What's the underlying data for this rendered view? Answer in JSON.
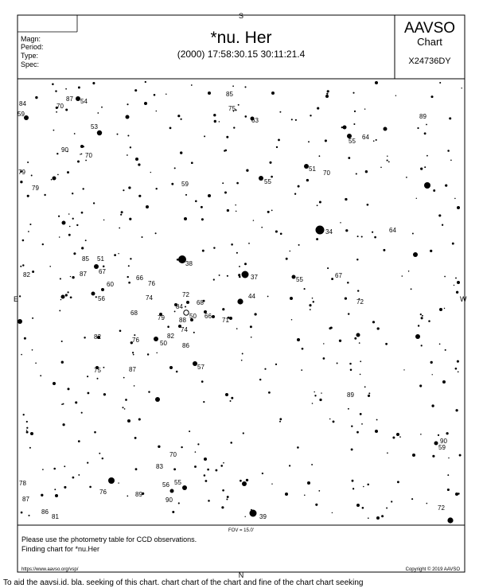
{
  "header": {
    "left_fields": [
      "Magn:",
      "Period:",
      "Type:",
      "Spec:"
    ],
    "star_name": "*nu. Her",
    "coords": "(2000) 17:58:30.15  30:11:21.4",
    "org": "AAVSO",
    "chart_word": "Chart",
    "chart_id": "X24736DY"
  },
  "compass": {
    "north": "N",
    "south": "S",
    "east": "E",
    "west": "W"
  },
  "footer": {
    "fov": "FOV = 15.0'",
    "line1": "Please use the photometry table for CCD observations.",
    "line2": "Finding chart for *nu.Her",
    "url": "https://www.aavso.org/vsp/",
    "copyright": "Copyright © 2019 AAVSO"
  },
  "overflow_text": "To aid the aavsi.id. bla. seeking of this chart. chart chart of the chart and fine of the chart chart seeking",
  "comparison_labels": [
    "84",
    "59",
    "87",
    "54",
    "70",
    "85",
    "75",
    "63",
    "89",
    "53",
    "55",
    "64",
    "90",
    "70",
    "51",
    "70",
    "55",
    "79",
    "79",
    "59",
    "34",
    "64",
    "82",
    "85",
    "51",
    "87",
    "67",
    "38",
    "60",
    "66",
    "37",
    "55",
    "67",
    "56",
    "76",
    "72",
    "74",
    "44",
    "72",
    "84",
    "68",
    "68",
    "66",
    "79",
    "50",
    "88",
    "71",
    "74",
    "82",
    "82",
    "76",
    "50",
    "86",
    "57",
    "75",
    "87",
    "89",
    "90",
    "59",
    "70",
    "83",
    "78",
    "76",
    "56",
    "55",
    "89",
    "87",
    "90",
    "86",
    "81",
    "39",
    "72"
  ]
}
